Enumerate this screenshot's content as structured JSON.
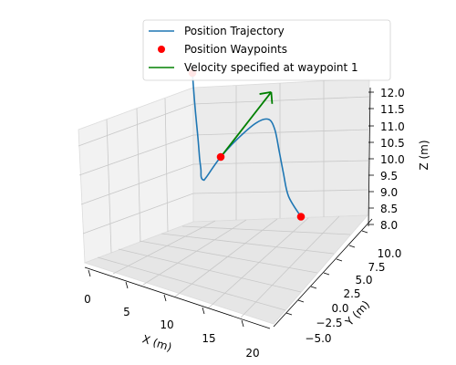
{
  "chart_data": {
    "type": "line",
    "projection": "3d",
    "xlabel": "X (m)",
    "ylabel": "Y (m)",
    "zlabel": "Z (m)",
    "xlim": [
      -1,
      21
    ],
    "ylim": [
      -6,
      11
    ],
    "zlim": [
      8,
      12
    ],
    "x_ticks": [
      "0",
      "5",
      "10",
      "15",
      "20"
    ],
    "y_ticks": [
      "−5.0",
      "−2.5",
      "0.0",
      "2.5",
      "5.0",
      "7.5",
      "10.0"
    ],
    "z_ticks": [
      "8.0",
      "8.5",
      "9.0",
      "9.5",
      "10.0",
      "10.5",
      "11.0",
      "11.5",
      "12.0"
    ],
    "grid": true,
    "legend_placement": "top-center",
    "series": [
      {
        "name": "Position Trajectory",
        "kind": "line",
        "color": "#1f77b4",
        "points": [
          [
            0,
            10,
            10
          ],
          [
            1.2,
            8.6,
            9.4
          ],
          [
            2.6,
            7.0,
            8.85
          ],
          [
            4.0,
            5.2,
            8.6
          ],
          [
            5.2,
            3.6,
            8.62
          ],
          [
            6.4,
            1.8,
            8.8
          ],
          [
            7.6,
            0.4,
            9.05
          ],
          [
            8.5,
            -0.5,
            9.35
          ],
          [
            10,
            0,
            10
          ],
          [
            11.8,
            0.8,
            10.6
          ],
          [
            13.5,
            1.5,
            11.05
          ],
          [
            14.8,
            1.8,
            11.2
          ],
          [
            15.7,
            1.6,
            11.0
          ],
          [
            16.5,
            1.2,
            10.5
          ],
          [
            17.3,
            0.8,
            9.95
          ],
          [
            18.2,
            0.4,
            9.4
          ],
          [
            20,
            0,
            9
          ]
        ]
      },
      {
        "name": "Position Waypoints",
        "kind": "scatter",
        "color": "#ff0000",
        "points": [
          [
            0,
            10,
            10
          ],
          [
            10,
            0,
            10
          ],
          [
            20,
            0,
            9
          ]
        ]
      },
      {
        "name": "Velocity specified at waypoint 1",
        "kind": "arrow",
        "color": "#008000",
        "origin": [
          10,
          0,
          10
        ],
        "vector": [
          5,
          2,
          2
        ]
      }
    ]
  }
}
